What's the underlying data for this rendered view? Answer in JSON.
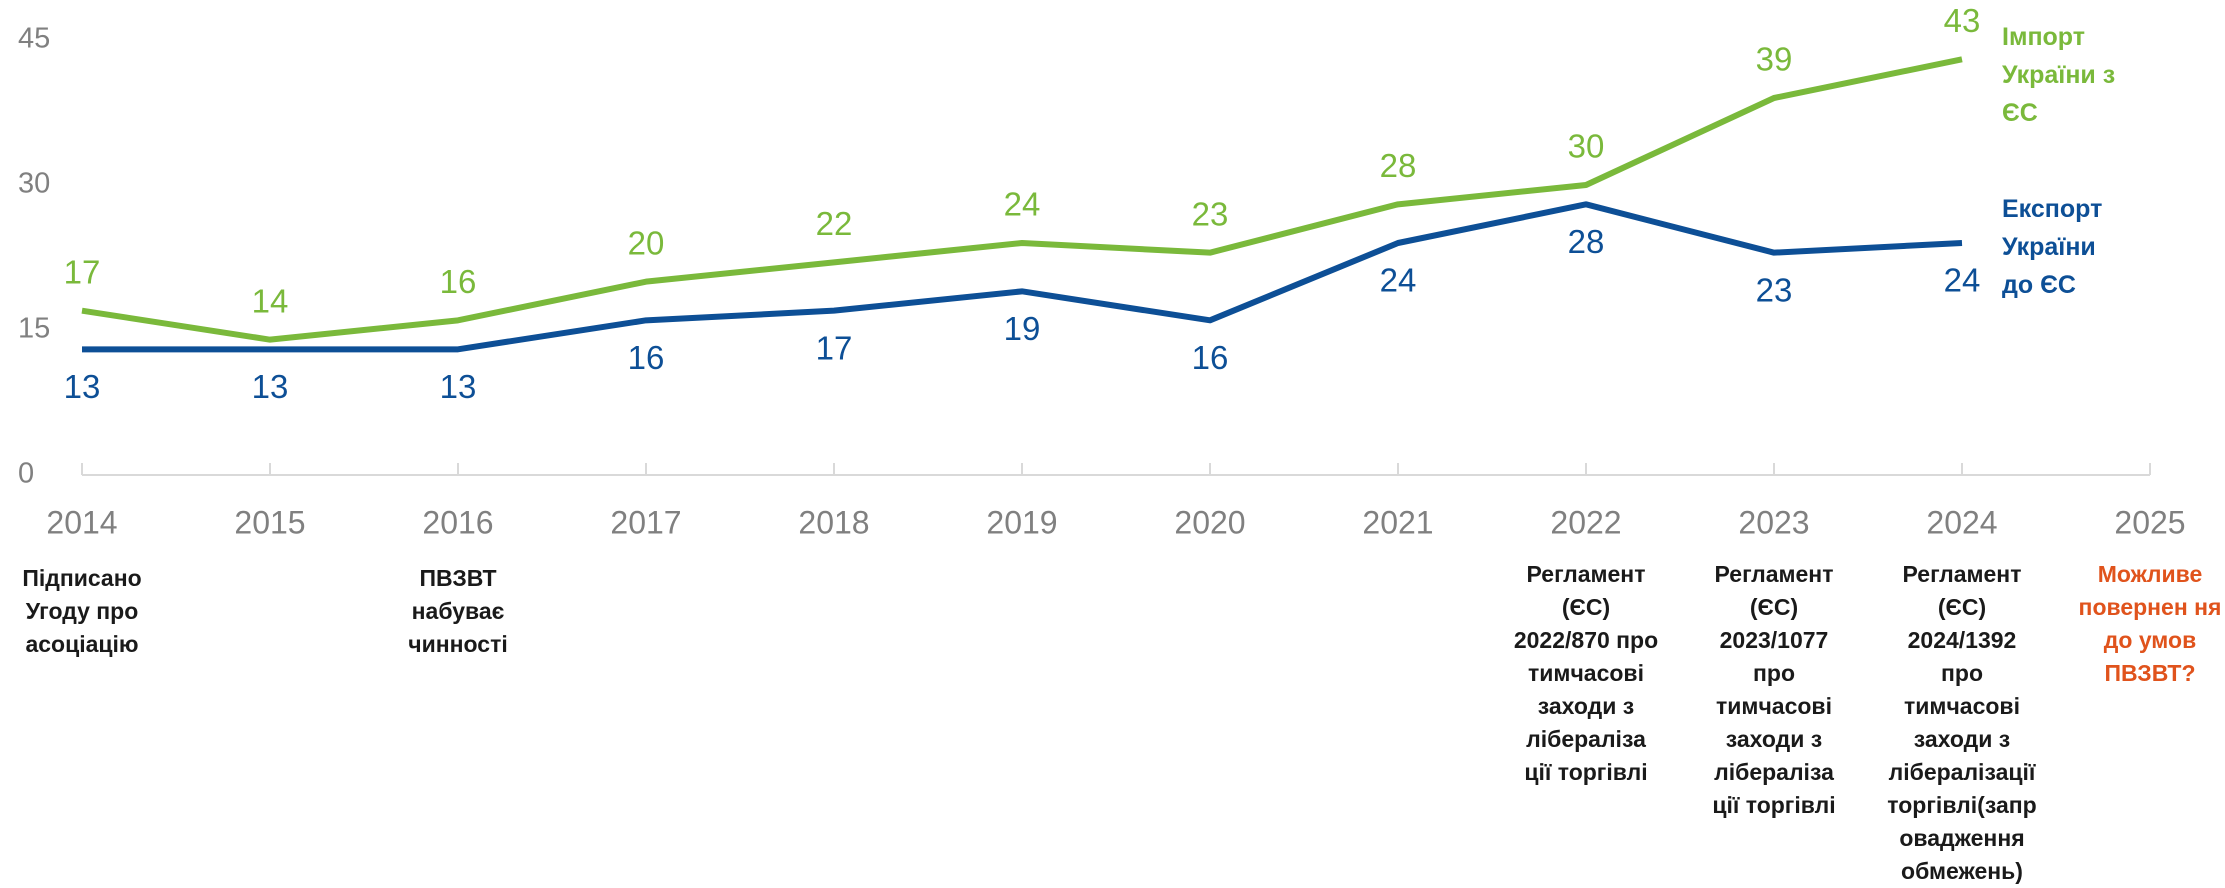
{
  "chart_data": {
    "type": "line",
    "x": [
      2014,
      2015,
      2016,
      2017,
      2018,
      2019,
      2020,
      2021,
      2022,
      2023,
      2024
    ],
    "series": [
      {
        "name": "Імпорт України з ЄС",
        "color": "#7ab93b",
        "values": [
          17,
          14,
          16,
          20,
          22,
          24,
          23,
          28,
          30,
          39,
          43
        ]
      },
      {
        "name": "Експорт України до ЄС",
        "color": "#0d4f96",
        "values": [
          13,
          13,
          13,
          16,
          17,
          19,
          16,
          24,
          28,
          23,
          24
        ]
      }
    ],
    "xlim": [
      2014,
      2025
    ],
    "xticks": [
      2014,
      2015,
      2016,
      2017,
      2018,
      2019,
      2020,
      2021,
      2022,
      2023,
      2024,
      2025
    ],
    "ylim": [
      0,
      45
    ],
    "yticks": [
      0,
      15,
      30,
      45
    ],
    "grid": false,
    "annotations": [
      {
        "x": 2014,
        "text": "Підписано Угоду про асоціацію",
        "color": "#1a1a1a"
      },
      {
        "x": 2016,
        "text": "ПВЗВТ набуває чинності",
        "color": "#1a1a1a"
      },
      {
        "x": 2022,
        "text": "Регламент (ЄС) 2022/870 про тимчасові заходи з лібераліза ції торгівлі",
        "color": "#1a1a1a"
      },
      {
        "x": 2023,
        "text": "Регламент (ЄС) 2023/1077 про тимчасові заходи з лібераліза ції торгівлі",
        "color": "#1a1a1a"
      },
      {
        "x": 2024,
        "text": "Регламент (ЄС) 2024/1392 про тимчасові заходи з лібералізації торгівлі(запр овадження обмежень)",
        "color": "#1a1a1a"
      },
      {
        "x": 2025,
        "text": "Можливе повернен ня до умов ПВЗВТ?",
        "color": "#e0531c"
      }
    ]
  }
}
